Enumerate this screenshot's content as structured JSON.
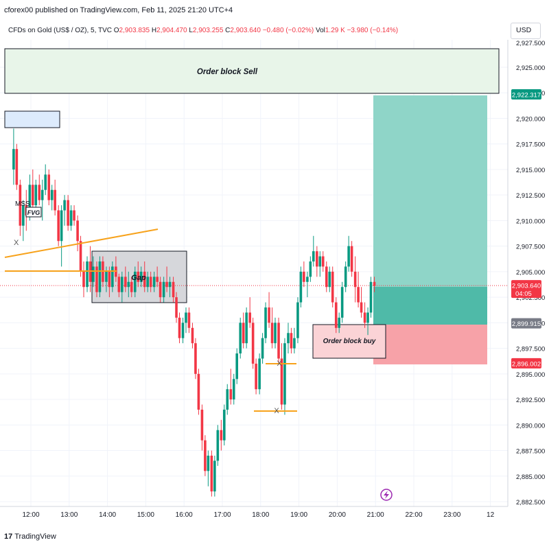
{
  "header": {
    "published": "cforex00 published on TradingView.com, Feb 11, 2025 21:20 UTC+4",
    "symbol": "CFDs on Gold (US$ / OZ), 5, TVC",
    "o_label": "O",
    "o_value": "2,903.835",
    "h_label": "H",
    "h_value": "2,904.470",
    "l_label": "L",
    "l_value": "2,903.255",
    "c_label": "C",
    "c_value": "2,903.640",
    "change": "−0.480 (−0.02%)",
    "vol_label": "Vol",
    "vol_value": "1.29 K",
    "vol_change": "−3.980 (−0.14%)",
    "currency": "USD"
  },
  "branding": {
    "logo": "TradingView",
    "logo_mark": "17"
  },
  "colors": {
    "up": "#089981",
    "down": "#f23645",
    "orange": "#f7a21b",
    "tp": "#8fd5c8",
    "tp_entry": "#4fbaa8",
    "sl": "#f7a2a8"
  },
  "chart_data": {
    "type": "candlestick",
    "instrument": "CFDs on Gold (US$ / OZ)",
    "timeframe": "5",
    "ylim": [
      2882.5,
      2927.5
    ],
    "y_ticks": [
      "2,925.000",
      "2,922.500",
      "2,920.000",
      "2,917.500",
      "2,915.000",
      "2,912.500",
      "2,910.000",
      "2,907.500",
      "2,905.000",
      "2,902.500",
      "2,900.000",
      "2,897.500",
      "2,895.000",
      "2,892.500",
      "2,890.000",
      "2,887.500",
      "2,885.000",
      "2,882.500"
    ],
    "y_tick_values": [
      2925,
      2922.5,
      2920,
      2917.5,
      2915,
      2912.5,
      2910,
      2907.5,
      2905,
      2902.5,
      2900,
      2897.5,
      2895,
      2892.5,
      2890,
      2887.5,
      2885,
      2882.5
    ],
    "top_partial_tick": "2,927.500",
    "x_ticks": [
      "12:00",
      "13:00",
      "14:00",
      "15:00",
      "16:00",
      "17:00",
      "18:00",
      "19:00",
      "20:00",
      "21:00",
      "22:00",
      "23:00",
      "12"
    ],
    "price_labels": [
      {
        "name": "target",
        "value": 2922.317,
        "text": "2,922.317",
        "color": "#089981"
      },
      {
        "name": "current",
        "value": 2903.64,
        "text": "2,903.640",
        "sub": "04:05",
        "color": "#f23645"
      },
      {
        "name": "entry",
        "value": 2899.915,
        "text": "2,899.915",
        "color": "#787b86"
      },
      {
        "name": "stop",
        "value": 2896.002,
        "text": "2,896.002",
        "color": "#f23645"
      }
    ],
    "annotations": {
      "order_block_sell": "Order block Sell",
      "order_block_buy": "Order block buy",
      "gap": "Gap",
      "mss": "MSS",
      "fvg": "FVG",
      "x_marks": [
        "X",
        "X",
        "X"
      ]
    },
    "candles": [
      [
        11.55,
        2915.0,
        2919.0,
        2913.5,
        2917.0
      ],
      [
        11.63,
        2917.0,
        2917.5,
        2913.0,
        2913.5
      ],
      [
        11.72,
        2913.5,
        2914.0,
        2908.5,
        2909.5
      ],
      [
        11.8,
        2909.5,
        2912.0,
        2908.0,
        2911.5
      ],
      [
        11.88,
        2911.5,
        2913.0,
        2909.0,
        2910.5
      ],
      [
        11.97,
        2910.5,
        2914.5,
        2910.0,
        2913.5
      ],
      [
        12.05,
        2913.5,
        2915.0,
        2911.0,
        2911.5
      ],
      [
        12.13,
        2911.5,
        2914.0,
        2911.0,
        2913.5
      ],
      [
        12.22,
        2913.5,
        2914.5,
        2911.5,
        2912.0
      ],
      [
        12.3,
        2912.0,
        2914.0,
        2910.0,
        2913.0
      ],
      [
        12.38,
        2913.0,
        2915.5,
        2912.5,
        2914.5
      ],
      [
        12.47,
        2914.5,
        2915.0,
        2911.5,
        2912.0
      ],
      [
        12.55,
        2912.0,
        2913.5,
        2911.0,
        2913.0
      ],
      [
        12.63,
        2913.0,
        2914.0,
        2910.5,
        2911.0
      ],
      [
        12.72,
        2911.0,
        2911.5,
        2907.5,
        2908.0
      ],
      [
        12.8,
        2908.0,
        2911.5,
        2905.5,
        2911.0
      ],
      [
        12.88,
        2911.0,
        2912.5,
        2909.5,
        2912.0
      ],
      [
        12.97,
        2912.0,
        2912.5,
        2909.0,
        2909.5
      ],
      [
        13.05,
        2909.5,
        2911.5,
        2909.0,
        2911.0
      ],
      [
        13.13,
        2911.0,
        2911.5,
        2909.5,
        2910.0
      ],
      [
        13.22,
        2910.0,
        2910.5,
        2907.0,
        2908.0
      ],
      [
        13.3,
        2908.0,
        2908.5,
        2904.5,
        2905.0
      ],
      [
        13.38,
        2905.0,
        2906.0,
        2902.5,
        2903.5
      ],
      [
        13.47,
        2903.5,
        2906.5,
        2903.0,
        2906.0
      ],
      [
        13.55,
        2906.0,
        2907.5,
        2903.0,
        2904.0
      ],
      [
        13.63,
        2904.0,
        2906.5,
        2903.5,
        2905.5
      ],
      [
        13.72,
        2905.5,
        2906.0,
        2902.5,
        2903.0
      ],
      [
        13.8,
        2903.0,
        2906.5,
        2902.5,
        2906.0
      ],
      [
        13.88,
        2906.0,
        2906.5,
        2903.5,
        2904.0
      ],
      [
        13.97,
        2904.0,
        2905.5,
        2903.0,
        2905.0
      ],
      [
        14.05,
        2905.0,
        2905.5,
        2902.5,
        2903.5
      ],
      [
        14.13,
        2903.5,
        2906.0,
        2903.0,
        2905.5
      ],
      [
        14.22,
        2905.5,
        2906.5,
        2904.0,
        2904.5
      ],
      [
        14.3,
        2904.5,
        2904.8,
        2902.5,
        2903.0
      ],
      [
        14.38,
        2903.0,
        2905.0,
        2902.0,
        2904.5
      ],
      [
        14.47,
        2904.5,
        2905.5,
        2903.0,
        2903.5
      ],
      [
        14.55,
        2903.5,
        2905.0,
        2902.5,
        2904.0
      ],
      [
        14.63,
        2904.0,
        2904.5,
        2902.5,
        2903.0
      ],
      [
        14.72,
        2903.0,
        2905.5,
        2902.5,
        2905.0
      ],
      [
        14.8,
        2905.0,
        2906.0,
        2903.5,
        2904.0
      ],
      [
        14.88,
        2904.0,
        2905.5,
        2903.5,
        2905.0
      ],
      [
        14.97,
        2905.0,
        2906.0,
        2903.0,
        2903.5
      ],
      [
        15.05,
        2903.5,
        2905.0,
        2903.0,
        2904.5
      ],
      [
        15.13,
        2904.5,
        2905.0,
        2903.0,
        2903.5
      ],
      [
        15.22,
        2903.5,
        2905.0,
        2903.0,
        2904.5
      ],
      [
        15.3,
        2904.5,
        2905.5,
        2903.5,
        2904.0
      ],
      [
        15.38,
        2904.0,
        2904.5,
        2902.0,
        2902.5
      ],
      [
        15.47,
        2902.5,
        2904.5,
        2902.0,
        2904.0
      ],
      [
        15.55,
        2904.0,
        2905.5,
        2903.0,
        2903.5
      ],
      [
        15.63,
        2903.5,
        2904.5,
        2902.5,
        2904.0
      ],
      [
        15.72,
        2904.0,
        2904.5,
        2902.0,
        2902.5
      ],
      [
        15.8,
        2902.5,
        2903.0,
        2900.0,
        2900.5
      ],
      [
        15.88,
        2900.5,
        2901.0,
        2898.0,
        2898.5
      ],
      [
        15.97,
        2898.5,
        2900.5,
        2898.0,
        2900.0
      ],
      [
        16.05,
        2900.0,
        2901.5,
        2899.0,
        2901.0
      ],
      [
        16.13,
        2901.0,
        2901.5,
        2899.0,
        2899.5
      ],
      [
        16.22,
        2899.5,
        2900.0,
        2897.5,
        2898.0
      ],
      [
        16.3,
        2898.0,
        2898.5,
        2894.5,
        2895.0
      ],
      [
        16.38,
        2895.0,
        2895.5,
        2891.0,
        2891.5
      ],
      [
        16.47,
        2891.5,
        2892.0,
        2887.5,
        2888.5
      ],
      [
        16.55,
        2888.5,
        2889.0,
        2885.0,
        2885.5
      ],
      [
        16.63,
        2885.5,
        2887.5,
        2884.0,
        2887.0
      ],
      [
        16.72,
        2887.0,
        2887.5,
        2883.0,
        2883.5
      ],
      [
        16.8,
        2883.5,
        2887.0,
        2883.0,
        2886.5
      ],
      [
        16.88,
        2886.5,
        2890.0,
        2886.0,
        2889.5
      ],
      [
        16.97,
        2889.5,
        2890.5,
        2887.5,
        2888.5
      ],
      [
        17.05,
        2888.5,
        2892.0,
        2888.0,
        2891.5
      ],
      [
        17.13,
        2891.5,
        2894.0,
        2891.0,
        2893.5
      ],
      [
        17.22,
        2893.5,
        2895.5,
        2892.0,
        2892.5
      ],
      [
        17.3,
        2892.5,
        2895.0,
        2892.0,
        2894.5
      ],
      [
        17.38,
        2894.5,
        2897.5,
        2894.0,
        2897.0
      ],
      [
        17.47,
        2897.0,
        2900.5,
        2896.5,
        2900.0
      ],
      [
        17.55,
        2900.0,
        2901.0,
        2897.5,
        2898.0
      ],
      [
        17.63,
        2898.0,
        2901.5,
        2897.5,
        2901.0
      ],
      [
        17.72,
        2901.0,
        2902.5,
        2899.5,
        2900.0
      ],
      [
        17.8,
        2900.0,
        2900.5,
        2895.5,
        2896.0
      ],
      [
        17.88,
        2896.0,
        2896.5,
        2893.0,
        2893.5
      ],
      [
        17.97,
        2893.5,
        2897.0,
        2893.0,
        2896.5
      ],
      [
        18.05,
        2896.5,
        2899.0,
        2896.0,
        2898.5
      ],
      [
        18.13,
        2898.5,
        2902.0,
        2898.0,
        2901.5
      ],
      [
        18.22,
        2901.5,
        2903.0,
        2899.5,
        2900.0
      ],
      [
        18.3,
        2900.0,
        2901.5,
        2897.5,
        2898.0
      ],
      [
        18.38,
        2898.0,
        2900.5,
        2897.5,
        2900.0
      ],
      [
        18.47,
        2900.0,
        2900.5,
        2896.0,
        2896.5
      ],
      [
        18.55,
        2896.5,
        2898.0,
        2891.5,
        2892.0
      ],
      [
        18.63,
        2892.0,
        2898.5,
        2891.0,
        2898.0
      ],
      [
        18.72,
        2898.0,
        2900.0,
        2897.0,
        2899.0
      ],
      [
        18.8,
        2899.0,
        2899.5,
        2897.0,
        2897.5
      ],
      [
        18.88,
        2897.5,
        2899.5,
        2897.0,
        2898.5
      ],
      [
        18.97,
        2898.5,
        2902.5,
        2898.0,
        2902.0
      ],
      [
        19.05,
        2902.0,
        2905.5,
        2901.5,
        2905.0
      ],
      [
        19.13,
        2905.0,
        2906.0,
        2903.5,
        2904.0
      ],
      [
        19.22,
        2904.0,
        2905.0,
        2902.5,
        2904.5
      ],
      [
        19.3,
        2904.5,
        2906.5,
        2904.0,
        2906.0
      ],
      [
        19.38,
        2906.0,
        2908.5,
        2905.5,
        2907.0
      ],
      [
        19.47,
        2907.0,
        2907.5,
        2904.5,
        2905.5
      ],
      [
        19.55,
        2905.5,
        2907.0,
        2904.5,
        2906.5
      ],
      [
        19.63,
        2906.5,
        2907.0,
        2905.0,
        2905.5
      ],
      [
        19.72,
        2905.5,
        2906.0,
        2903.0,
        2903.5
      ],
      [
        19.8,
        2903.5,
        2905.5,
        2903.0,
        2905.0
      ],
      [
        19.88,
        2905.0,
        2905.5,
        2901.5,
        2902.0
      ],
      [
        19.97,
        2902.0,
        2902.5,
        2899.0,
        2899.5
      ],
      [
        20.05,
        2899.5,
        2901.0,
        2899.0,
        2900.5
      ],
      [
        20.13,
        2900.5,
        2904.0,
        2900.0,
        2903.5
      ]
    ]
  }
}
